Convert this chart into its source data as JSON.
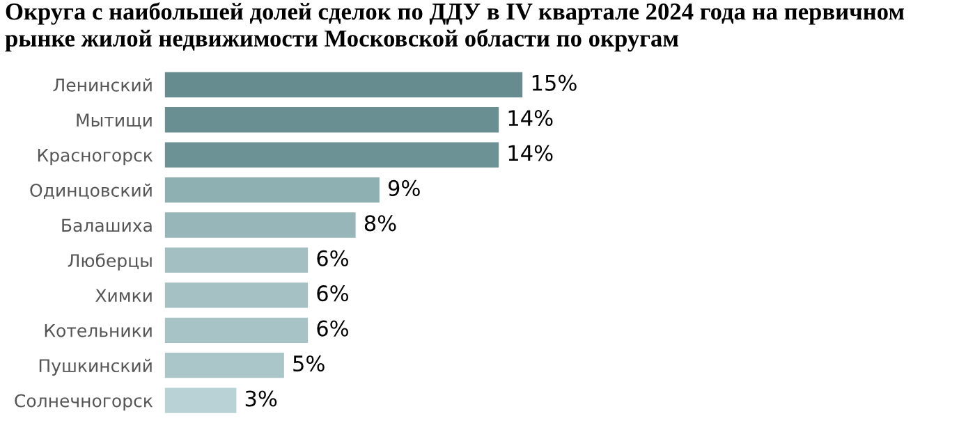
{
  "chart_data": {
    "type": "bar",
    "orientation": "horizontal",
    "value_labels": [
      "15%",
      "14%",
      "14%",
      "9%",
      "8%",
      "6%",
      "6%",
      "6%",
      "5%",
      "3%"
    ],
    "legend": false,
    "grid": false,
    "title": "Округа с наибольшей долей сделок по ДДУ в IV квартале 2024 года на первичном рынке жилой недвижимости Московской области по округам",
    "categories": [
      "Ленинский",
      "Мытищи",
      "Красногорск",
      "Одинцовский",
      "Балашиха",
      "Люберцы",
      "Химки",
      "Котельники",
      "Пушкинский",
      "Солнечногорск"
    ],
    "values": [
      15,
      14,
      14,
      9,
      8,
      6,
      6,
      6,
      5,
      3
    ],
    "colors": [
      "#668c90",
      "#6a8f93",
      "#6d9296",
      "#8fb0b3",
      "#97b6b9",
      "#a3bfc2",
      "#a6c1c4",
      "#a8c3c6",
      "#aac6c9",
      "#b8d2d5"
    ]
  }
}
